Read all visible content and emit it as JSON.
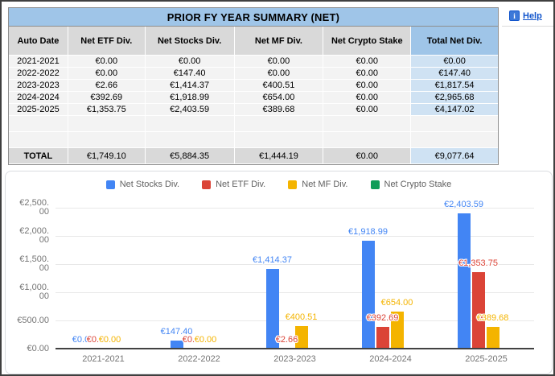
{
  "window": {
    "help_label": "Help",
    "info_icon_glyph": "i"
  },
  "colors": {
    "title_bar": "#9fc5e8",
    "header_bg": "#d9d9d9",
    "row_bg": "#f3f3f3",
    "total_col": "#cfe2f3",
    "total_header": "#9fc5e8",
    "link": "#1155cc",
    "axis_text": "#757575",
    "legend_text": "#616161",
    "grid": "#e8e8e8",
    "axis_line": "#424242",
    "chart_border": "#dadce0"
  },
  "table": {
    "title": "PRIOR FY YEAR SUMMARY (NET)",
    "columns": [
      "Auto Date",
      "Net ETF Div.",
      "Net Stocks Div.",
      "Net MF Div.",
      "Net Crypto Stake",
      "Total Net Div."
    ],
    "rows": [
      [
        "2021-2021",
        "€0.00",
        "€0.00",
        "€0.00",
        "€0.00",
        "€0.00"
      ],
      [
        "2022-2022",
        "€0.00",
        "€147.40",
        "€0.00",
        "€0.00",
        "€147.40"
      ],
      [
        "2023-2023",
        "€2.66",
        "€1,414.37",
        "€400.51",
        "€0.00",
        "€1,817.54"
      ],
      [
        "2024-2024",
        "€392.69",
        "€1,918.99",
        "€654.00",
        "€0.00",
        "€2,965.68"
      ],
      [
        "2025-2025",
        "€1,353.75",
        "€2,403.59",
        "€389.68",
        "€0.00",
        "€4,147.02"
      ]
    ],
    "total_row": [
      "TOTAL",
      "€1,749.10",
      "€5,884.35",
      "€1,444.19",
      "€0.00",
      "€9,077.64"
    ],
    "empty_row_count": 2
  },
  "chart_data": {
    "type": "bar",
    "title": "",
    "categories": [
      "2021-2021",
      "2022-2022",
      "2023-2023",
      "2024-2024",
      "2025-2025"
    ],
    "series": [
      {
        "name": "Net Stocks Div.",
        "color": "#4285F4",
        "values": [
          0,
          147.4,
          1414.37,
          1918.99,
          2403.59
        ],
        "labels": [
          "€0.0",
          "€147.40",
          "€1,414.37",
          "€1,918.99",
          "€2,403.59"
        ]
      },
      {
        "name": "Net ETF Div.",
        "color": "#DB4437",
        "values": [
          0,
          0,
          2.66,
          392.69,
          1353.75
        ],
        "labels": [
          "€0.0",
          "€0.0",
          "€2.66",
          "€392.69",
          "€1,353.75"
        ]
      },
      {
        "name": "Net MF Div.",
        "color": "#F4B400",
        "values": [
          0,
          0,
          400.51,
          654.0,
          389.68
        ],
        "labels": [
          "€0.00",
          "€0.00",
          "€400.51",
          "€654.00",
          "€389.68"
        ]
      },
      {
        "name": "Net Crypto Stake",
        "color": "#0F9D58",
        "values": [
          0,
          0,
          0,
          0,
          0
        ],
        "labels": [
          null,
          null,
          null,
          null,
          null
        ]
      }
    ],
    "y_ticks": [
      {
        "value": 0,
        "lines": [
          "€0.00"
        ]
      },
      {
        "value": 500,
        "lines": [
          "€500.00"
        ]
      },
      {
        "value": 1000,
        "lines": [
          "€1,000.",
          "00"
        ]
      },
      {
        "value": 1500,
        "lines": [
          "€1,500.",
          "00"
        ]
      },
      {
        "value": 2000,
        "lines": [
          "€2,000.",
          "00"
        ]
      },
      {
        "value": 2500,
        "lines": [
          "€2,500.",
          "00"
        ]
      }
    ],
    "ylim": [
      0,
      2500
    ],
    "grid": true,
    "legend_position": "top"
  }
}
